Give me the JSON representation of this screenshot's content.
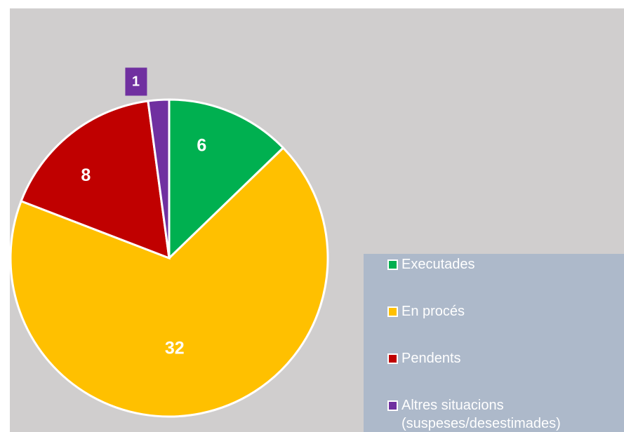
{
  "chart_data": {
    "type": "pie",
    "categories": [
      "Executades",
      "En procés",
      "Pendents",
      "Altres situacions (suspeses/desestimades)"
    ],
    "values": [
      6,
      32,
      8,
      1
    ],
    "colors": [
      "#00b050",
      "#ffc000",
      "#c00000",
      "#7030a0"
    ]
  }
}
